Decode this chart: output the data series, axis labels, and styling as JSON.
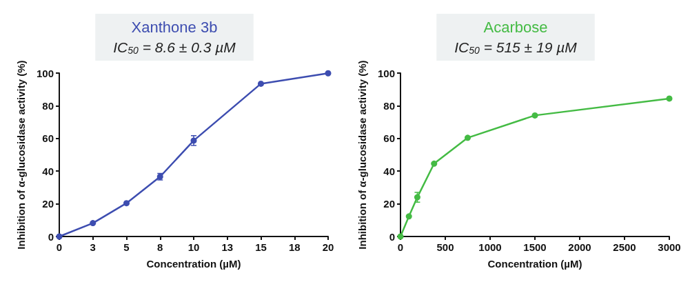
{
  "chart_data": [
    {
      "type": "line",
      "title": "Xanthone 3b",
      "subtitle": "IC$_{50}$ = 8.6 ± 0.3 µM",
      "xlabel": "Concentration (µM)",
      "ylabel": "Inhibition of α-glucosidase activity (%)",
      "x": [
        0,
        2.5,
        5,
        7.5,
        10,
        15,
        20
      ],
      "series": [
        {
          "color": "#3d4db0",
          "values": [
            0,
            8.2,
            20.4,
            36.6,
            58.7,
            93.5,
            99.9
          ],
          "errors": [
            null,
            null,
            null,
            2,
            3,
            null,
            null
          ]
        }
      ],
      "xlim": [
        0,
        20
      ],
      "xticks": [
        0,
        {
          "value": 2.5,
          "label": "3"
        },
        5,
        {
          "value": 7.5,
          "label": "8"
        },
        10,
        {
          "value": 12.5,
          "label": "13"
        },
        15,
        {
          "value": 17.5,
          "label": "18"
        },
        20
      ],
      "ylim": [
        0,
        100
      ],
      "yticks": [
        0,
        20,
        40,
        60,
        80,
        100
      ],
      "marker": "circle",
      "line_style": "solid"
    },
    {
      "type": "line",
      "title": "Acarbose",
      "subtitle": "IC$_{50}$ = 515 ± 19 µM",
      "xlabel": "Concentration (µM)",
      "ylabel": "Inhibition of α-glucosidase activity (%)",
      "x": [
        0,
        94,
        188,
        375,
        750,
        1500,
        3000
      ],
      "series": [
        {
          "color": "#44bb44",
          "values": [
            0,
            12.3,
            24,
            44.6,
            60.4,
            74.1,
            84.4
          ],
          "errors": [
            null,
            null,
            3,
            null,
            null,
            null,
            null
          ]
        }
      ],
      "xlim": [
        0,
        3000
      ],
      "xticks": [
        0,
        500,
        1000,
        1500,
        2000,
        2500,
        3000
      ],
      "ylim": [
        0,
        100
      ],
      "yticks": [
        0,
        20,
        40,
        60,
        80,
        100
      ],
      "marker": "circle",
      "line_style": "solid"
    }
  ]
}
